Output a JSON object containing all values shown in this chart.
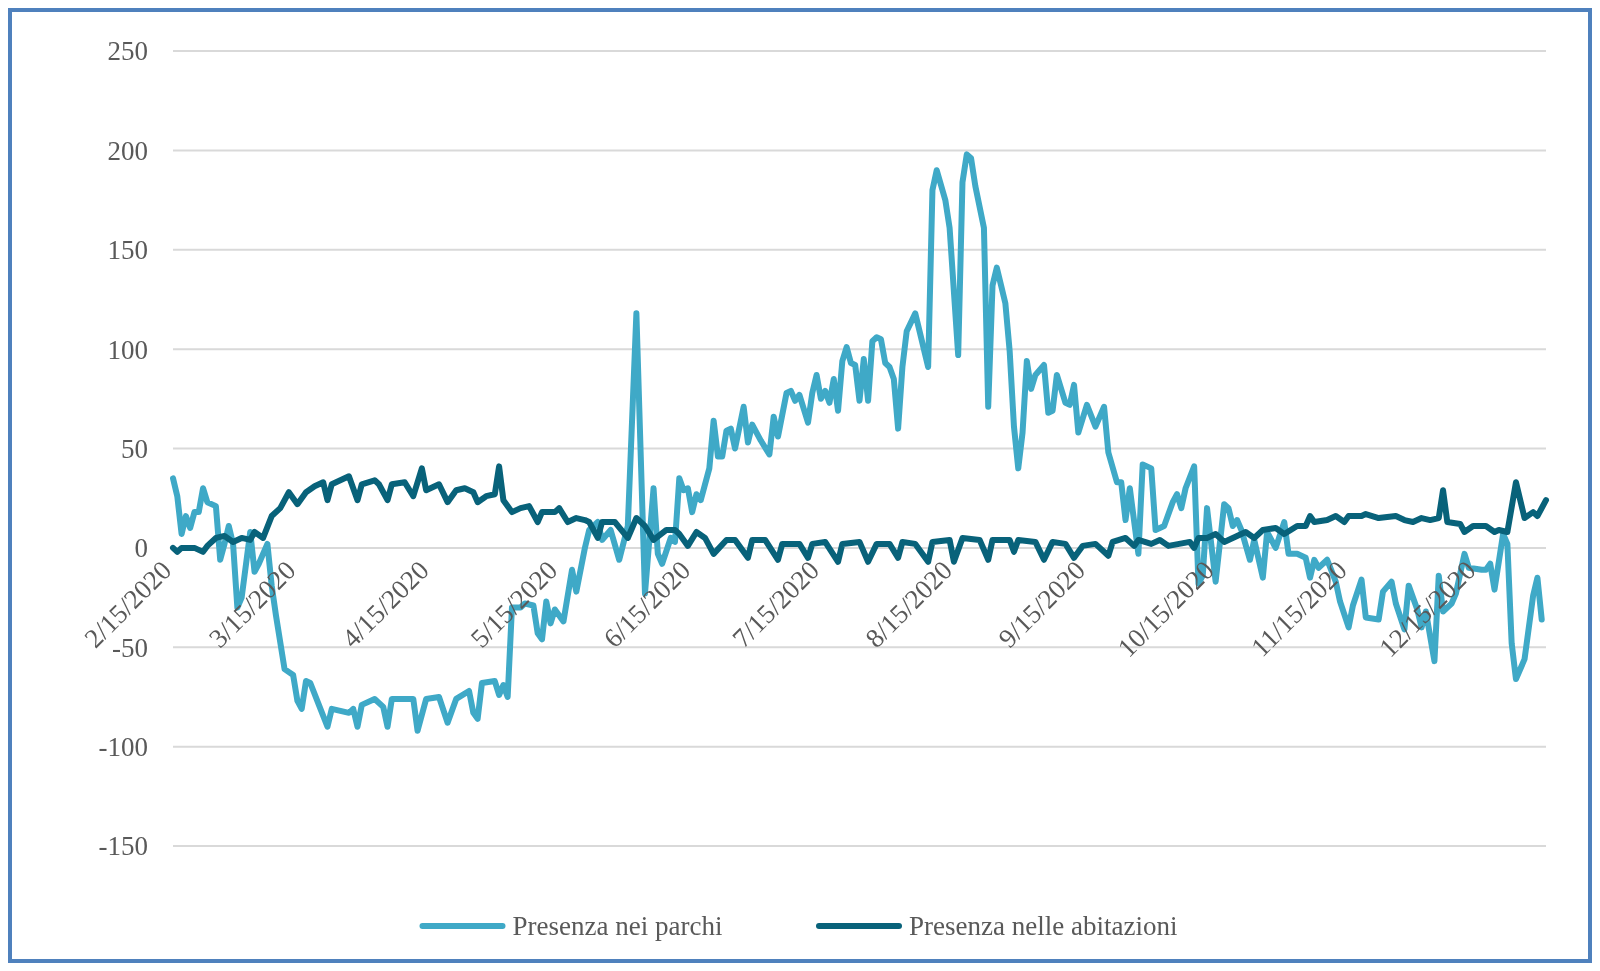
{
  "chart_data": {
    "type": "line",
    "grid": "y",
    "legend": "bottom",
    "ylim": [
      -150,
      250
    ],
    "yticks": [
      -150,
      -100,
      -50,
      0,
      50,
      100,
      150,
      200,
      250
    ],
    "xlim": [
      "2020-02-15",
      "2020-12-31"
    ],
    "xticks": [
      {
        "value": "2020-02-15",
        "label": "2/15/2020"
      },
      {
        "value": "2020-03-15",
        "label": "3/15/2020"
      },
      {
        "value": "2020-04-15",
        "label": "4/15/2020"
      },
      {
        "value": "2020-05-15",
        "label": "5/15/2020"
      },
      {
        "value": "2020-06-15",
        "label": "6/15/2020"
      },
      {
        "value": "2020-07-15",
        "label": "7/15/2020"
      },
      {
        "value": "2020-08-15",
        "label": "8/15/2020"
      },
      {
        "value": "2020-09-15",
        "label": "9/15/2020"
      },
      {
        "value": "2020-10-15",
        "label": "10/15/2020"
      },
      {
        "value": "2020-11-15",
        "label": "11/15/2020"
      },
      {
        "value": "2020-12-15",
        "label": "12/15/2020"
      }
    ],
    "series": [
      {
        "name": "Presenza nei parchi",
        "color": "#3fa9c7",
        "x": [
          "2020-02-15",
          "2020-02-16",
          "2020-02-17",
          "2020-02-18",
          "2020-02-19",
          "2020-02-20",
          "2020-02-21",
          "2020-02-22",
          "2020-02-23",
          "2020-02-25",
          "2020-02-26",
          "2020-02-27",
          "2020-02-28",
          "2020-02-29",
          "2020-03-01",
          "2020-03-02",
          "2020-03-04",
          "2020-03-05",
          "2020-03-06",
          "2020-03-08",
          "2020-03-09",
          "2020-03-10",
          "2020-03-12",
          "2020-03-14",
          "2020-03-15",
          "2020-03-16",
          "2020-03-17",
          "2020-03-18",
          "2020-03-20",
          "2020-03-22",
          "2020-03-23",
          "2020-03-25",
          "2020-03-27",
          "2020-03-28",
          "2020-03-29",
          "2020-03-30",
          "2020-04-02",
          "2020-04-04",
          "2020-04-05",
          "2020-04-06",
          "2020-04-09",
          "2020-04-11",
          "2020-04-12",
          "2020-04-14",
          "2020-04-17",
          "2020-04-19",
          "2020-04-21",
          "2020-04-24",
          "2020-04-25",
          "2020-04-26",
          "2020-04-27",
          "2020-04-30",
          "2020-05-01",
          "2020-05-02",
          "2020-05-03",
          "2020-05-04",
          "2020-05-06",
          "2020-05-07",
          "2020-05-09",
          "2020-05-10",
          "2020-05-11",
          "2020-05-12",
          "2020-05-13",
          "2020-05-14",
          "2020-05-16",
          "2020-05-18",
          "2020-05-19",
          "2020-05-21",
          "2020-05-22",
          "2020-05-24",
          "2020-05-25",
          "2020-05-27",
          "2020-05-29",
          "2020-05-31",
          "2020-06-02",
          "2020-06-04",
          "2020-06-06",
          "2020-06-07",
          "2020-06-08",
          "2020-06-10",
          "2020-06-11",
          "2020-06-12",
          "2020-06-13",
          "2020-06-14",
          "2020-06-15",
          "2020-06-16",
          "2020-06-17",
          "2020-06-19",
          "2020-06-20",
          "2020-06-21",
          "2020-06-22",
          "2020-06-23",
          "2020-06-24",
          "2020-06-25",
          "2020-06-27",
          "2020-06-28",
          "2020-06-29",
          "2020-07-01",
          "2020-07-03",
          "2020-07-04",
          "2020-07-05",
          "2020-07-07",
          "2020-07-08",
          "2020-07-09",
          "2020-07-10",
          "2020-07-12",
          "2020-07-13",
          "2020-07-14",
          "2020-07-15",
          "2020-07-16",
          "2020-07-17",
          "2020-07-18",
          "2020-07-19",
          "2020-07-20",
          "2020-07-21",
          "2020-07-22",
          "2020-07-23",
          "2020-07-24",
          "2020-07-25",
          "2020-07-26",
          "2020-07-27",
          "2020-07-28",
          "2020-07-29",
          "2020-07-30",
          "2020-07-31",
          "2020-08-01",
          "2020-08-02",
          "2020-08-03",
          "2020-08-04",
          "2020-08-06",
          "2020-08-07",
          "2020-08-09",
          "2020-08-10",
          "2020-08-11",
          "2020-08-13",
          "2020-08-14",
          "2020-08-16",
          "2020-08-17",
          "2020-08-18",
          "2020-08-19",
          "2020-08-20",
          "2020-08-22",
          "2020-08-23",
          "2020-08-24",
          "2020-08-25",
          "2020-08-26",
          "2020-08-27",
          "2020-08-28",
          "2020-08-29",
          "2020-08-30",
          "2020-08-31",
          "2020-09-01",
          "2020-09-02",
          "2020-09-03",
          "2020-09-05",
          "2020-09-06",
          "2020-09-07",
          "2020-09-08",
          "2020-09-09",
          "2020-09-10",
          "2020-09-11",
          "2020-09-12",
          "2020-09-13",
          "2020-09-15",
          "2020-09-17",
          "2020-09-19",
          "2020-09-20",
          "2020-09-22",
          "2020-09-23",
          "2020-09-24",
          "2020-09-25",
          "2020-09-27",
          "2020-09-28",
          "2020-09-30",
          "2020-10-01",
          "2020-10-03",
          "2020-10-05",
          "2020-10-06",
          "2020-10-07",
          "2020-10-08",
          "2020-10-10",
          "2020-10-11",
          "2020-10-12",
          "2020-10-13",
          "2020-10-15",
          "2020-10-17",
          "2020-10-18",
          "2020-10-19",
          "2020-10-20",
          "2020-10-21",
          "2020-10-23",
          "2020-10-24",
          "2020-10-26",
          "2020-10-27",
          "2020-10-29",
          "2020-10-31",
          "2020-11-01",
          "2020-11-03",
          "2020-11-05",
          "2020-11-06",
          "2020-11-07",
          "2020-11-08",
          "2020-11-10",
          "2020-11-12",
          "2020-11-13",
          "2020-11-15",
          "2020-11-16",
          "2020-11-18",
          "2020-11-19",
          "2020-11-22",
          "2020-11-23",
          "2020-11-25",
          "2020-11-26",
          "2020-11-28",
          "2020-11-29",
          "2020-12-01",
          "2020-12-02",
          "2020-12-03",
          "2020-12-05",
          "2020-12-06",
          "2020-12-07",
          "2020-12-09",
          "2020-12-10",
          "2020-12-12",
          "2020-12-13",
          "2020-12-16",
          "2020-12-17",
          "2020-12-18",
          "2020-12-19",
          "2020-12-21",
          "2020-12-22",
          "2020-12-23",
          "2020-12-24",
          "2020-12-26",
          "2020-12-28",
          "2020-12-29",
          "2020-12-30"
        ],
        "values": [
          35,
          26,
          7,
          16,
          10,
          18,
          18,
          30,
          23,
          21,
          -6,
          2,
          11,
          2,
          -30,
          -25,
          8,
          -12,
          -8,
          2,
          -19,
          -34,
          -61,
          -64,
          -77,
          -81,
          -67,
          -68,
          -79,
          -90,
          -81,
          -82,
          -83,
          -81,
          -90,
          -79,
          -76,
          -80,
          -90,
          -76,
          -76,
          -76,
          -92,
          -76,
          -75,
          -88,
          -76,
          -72,
          -83,
          -86,
          -68,
          -67,
          -74,
          -69,
          -75,
          -30,
          -30,
          -28,
          -29,
          -43,
          -46,
          -27,
          -38,
          -31,
          -37,
          -11,
          -22,
          0,
          9,
          13,
          4,
          9,
          -6,
          11,
          118,
          -23,
          30,
          -3,
          -8,
          5,
          3,
          35,
          29,
          30,
          18,
          27,
          24,
          40,
          64,
          46,
          46,
          59,
          60,
          50,
          71,
          53,
          62,
          54,
          47,
          66,
          56,
          78,
          79,
          74,
          77,
          63,
          78,
          87,
          75,
          79,
          73,
          85,
          69,
          94,
          101,
          93,
          92,
          74,
          95,
          74,
          104,
          106,
          105,
          93,
          91,
          85,
          60,
          91,
          109,
          118,
          109,
          91,
          180,
          190,
          175,
          161,
          97,
          184,
          198,
          196,
          182,
          161,
          71,
          132,
          141,
          132,
          123,
          99,
          61,
          40,
          58,
          94,
          80,
          87,
          92,
          68,
          69,
          87,
          80,
          73,
          72,
          82,
          58,
          72,
          61,
          71,
          48,
          33,
          33,
          14,
          30,
          -3,
          42,
          40,
          9,
          11,
          23,
          27,
          20,
          30,
          41,
          -18,
          -14,
          20,
          -17,
          22,
          20,
          11,
          14,
          9,
          -6,
          4,
          -15,
          8,
          0,
          13,
          -3,
          -3,
          -5,
          -15,
          -6,
          -10,
          -6,
          -17,
          -27,
          -40,
          -29,
          -16,
          -35,
          -36,
          -22,
          -17,
          -28,
          -41,
          -19,
          -31,
          -40,
          -32,
          -57,
          -14,
          -32,
          -28,
          -23,
          -3,
          -10,
          -11,
          -11,
          -8,
          -21,
          7,
          2,
          -48,
          -66,
          -56,
          -24,
          -15,
          -36
        ]
      },
      {
        "name": "Presenza nelle abitazioni",
        "color": "#08627a",
        "x": [
          "2020-02-15",
          "2020-02-16",
          "2020-02-17",
          "2020-02-20",
          "2020-02-22",
          "2020-02-23",
          "2020-02-25",
          "2020-02-27",
          "2020-02-29",
          "2020-03-02",
          "2020-03-04",
          "2020-03-05",
          "2020-03-07",
          "2020-03-09",
          "2020-03-11",
          "2020-03-13",
          "2020-03-15",
          "2020-03-17",
          "2020-03-19",
          "2020-03-21",
          "2020-03-22",
          "2020-03-23",
          "2020-03-25",
          "2020-03-27",
          "2020-03-29",
          "2020-03-30",
          "2020-04-02",
          "2020-04-03",
          "2020-04-05",
          "2020-04-06",
          "2020-04-09",
          "2020-04-11",
          "2020-04-13",
          "2020-04-14",
          "2020-04-17",
          "2020-04-19",
          "2020-04-21",
          "2020-04-23",
          "2020-04-25",
          "2020-04-26",
          "2020-04-28",
          "2020-04-30",
          "2020-05-01",
          "2020-05-02",
          "2020-05-04",
          "2020-05-06",
          "2020-05-08",
          "2020-05-10",
          "2020-05-11",
          "2020-05-14",
          "2020-05-15",
          "2020-05-17",
          "2020-05-19",
          "2020-05-21",
          "2020-05-22",
          "2020-05-24",
          "2020-05-25",
          "2020-05-28",
          "2020-05-31",
          "2020-06-02",
          "2020-06-04",
          "2020-06-06",
          "2020-06-09",
          "2020-06-11",
          "2020-06-12",
          "2020-06-14",
          "2020-06-16",
          "2020-06-18",
          "2020-06-20",
          "2020-06-23",
          "2020-06-25",
          "2020-06-28",
          "2020-06-29",
          "2020-07-02",
          "2020-07-05",
          "2020-07-06",
          "2020-07-10",
          "2020-07-12",
          "2020-07-13",
          "2020-07-16",
          "2020-07-19",
          "2020-07-20",
          "2020-07-24",
          "2020-07-26",
          "2020-07-28",
          "2020-07-31",
          "2020-08-02",
          "2020-08-03",
          "2020-08-06",
          "2020-08-09",
          "2020-08-10",
          "2020-08-14",
          "2020-08-15",
          "2020-08-17",
          "2020-08-21",
          "2020-08-23",
          "2020-08-24",
          "2020-08-28",
          "2020-08-29",
          "2020-08-30",
          "2020-09-03",
          "2020-09-05",
          "2020-09-07",
          "2020-09-10",
          "2020-09-12",
          "2020-09-14",
          "2020-09-17",
          "2020-09-20",
          "2020-09-21",
          "2020-09-24",
          "2020-09-26",
          "2020-09-27",
          "2020-09-30",
          "2020-10-02",
          "2020-10-04",
          "2020-10-09",
          "2020-10-10",
          "2020-10-11",
          "2020-10-13",
          "2020-10-15",
          "2020-10-17",
          "2020-10-20",
          "2020-10-22",
          "2020-10-24",
          "2020-10-26",
          "2020-10-29",
          "2020-10-31",
          "2020-11-03",
          "2020-11-05",
          "2020-11-06",
          "2020-11-07",
          "2020-11-10",
          "2020-11-12",
          "2020-11-14",
          "2020-11-15",
          "2020-11-18",
          "2020-11-19",
          "2020-11-22",
          "2020-11-26",
          "2020-11-28",
          "2020-11-30",
          "2020-12-02",
          "2020-12-04",
          "2020-12-06",
          "2020-12-07",
          "2020-12-08",
          "2020-12-11",
          "2020-12-12",
          "2020-12-14",
          "2020-12-17",
          "2020-12-19",
          "2020-12-20",
          "2020-12-22",
          "2020-12-24",
          "2020-12-26",
          "2020-12-28",
          "2020-12-29",
          "2020-12-31"
        ],
        "values": [
          0,
          -2,
          0,
          0,
          -2,
          1,
          5,
          6,
          3,
          5,
          4,
          8,
          5,
          16,
          20,
          28,
          22,
          28,
          31,
          33,
          24,
          32,
          34,
          36,
          24,
          32,
          34,
          32,
          24,
          32,
          33,
          26,
          40,
          29,
          32,
          23,
          29,
          30,
          28,
          23,
          26,
          27,
          41,
          24,
          18,
          20,
          21,
          13,
          18,
          18,
          20,
          13,
          15,
          14,
          13,
          5,
          13,
          13,
          5,
          15,
          11,
          4,
          9,
          9,
          7,
          1,
          8,
          5,
          -3,
          4,
          4,
          -5,
          4,
          4,
          -6,
          2,
          2,
          -5,
          2,
          3,
          -7,
          2,
          3,
          -7,
          2,
          2,
          -5,
          3,
          2,
          -7,
          3,
          4,
          -7,
          5,
          4,
          -6,
          4,
          4,
          -2,
          4,
          3,
          -6,
          3,
          2,
          -5,
          1,
          2,
          -4,
          3,
          5,
          1,
          4,
          2,
          4,
          1,
          3,
          0,
          5,
          5,
          7,
          3,
          6,
          8,
          5,
          9,
          10,
          7,
          11,
          11,
          16,
          13,
          14,
          16,
          13,
          16,
          16,
          17,
          15,
          16,
          14,
          13,
          15,
          14,
          15,
          29,
          13,
          12,
          8,
          11,
          11,
          8,
          9,
          8,
          33,
          15,
          18,
          16,
          24
        ]
      }
    ]
  }
}
